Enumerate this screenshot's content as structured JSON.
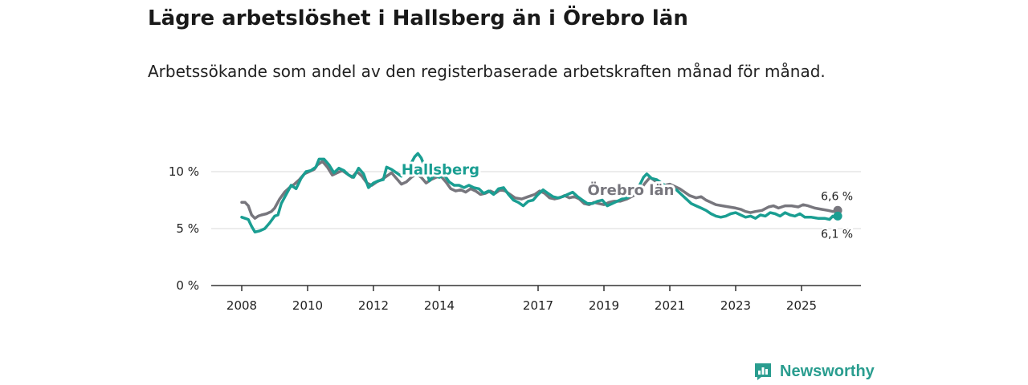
{
  "title": "Lägre arbetslöshet i Hallsberg än i Örebro län",
  "subtitle": "Arbetssökande som andel av den registerbaserade arbetskraften månad för månad.",
  "brand": {
    "name": "Newsworthy",
    "icon": "newsworthy-logo-icon"
  },
  "chart_data": {
    "type": "line",
    "title": "Lägre arbetslöshet i Hallsberg än i Örebro län",
    "ylabel": "",
    "xlabel": "",
    "ylim": [
      0,
      10
    ],
    "xlim": [
      2008,
      2026.4
    ],
    "y_ticks": [
      0,
      5,
      10
    ],
    "y_tick_labels": [
      "0 %",
      "5 %",
      "10 %"
    ],
    "x_ticks": [
      2008,
      2010,
      2012,
      2014,
      2017,
      2019,
      2021,
      2023,
      2025
    ],
    "x_tick_labels": [
      "2008",
      "2010",
      "2012",
      "2014",
      "2017",
      "2019",
      "2021",
      "2023",
      "2025"
    ],
    "grid": true,
    "series": [
      {
        "name": "Örebro län",
        "color": "#77767d",
        "end_label": "6,6 %",
        "points": [
          [
            2008.0,
            7.3
          ],
          [
            2008.1,
            7.3
          ],
          [
            2008.2,
            7.0
          ],
          [
            2008.3,
            6.2
          ],
          [
            2008.4,
            5.9
          ],
          [
            2008.5,
            6.1
          ],
          [
            2008.6,
            6.2
          ],
          [
            2008.75,
            6.3
          ],
          [
            2008.9,
            6.5
          ],
          [
            2009.0,
            6.8
          ],
          [
            2009.15,
            7.6
          ],
          [
            2009.3,
            8.2
          ],
          [
            2009.45,
            8.6
          ],
          [
            2009.6,
            8.9
          ],
          [
            2009.75,
            9.3
          ],
          [
            2009.9,
            9.8
          ],
          [
            2010.05,
            10.0
          ],
          [
            2010.2,
            10.2
          ],
          [
            2010.3,
            10.6
          ],
          [
            2010.45,
            10.9
          ],
          [
            2010.6,
            10.4
          ],
          [
            2010.75,
            9.7
          ],
          [
            2010.9,
            9.9
          ],
          [
            2011.05,
            10.1
          ],
          [
            2011.2,
            9.8
          ],
          [
            2011.35,
            9.5
          ],
          [
            2011.5,
            10.0
          ],
          [
            2011.65,
            9.6
          ],
          [
            2011.8,
            9.0
          ],
          [
            2011.95,
            8.8
          ],
          [
            2012.1,
            9.1
          ],
          [
            2012.25,
            9.3
          ],
          [
            2012.4,
            9.6
          ],
          [
            2012.55,
            9.9
          ],
          [
            2012.7,
            9.4
          ],
          [
            2012.85,
            8.9
          ],
          [
            2013.0,
            9.1
          ],
          [
            2013.15,
            9.5
          ],
          [
            2013.3,
            9.8
          ],
          [
            2013.45,
            9.5
          ],
          [
            2013.6,
            9.0
          ],
          [
            2013.75,
            9.3
          ],
          [
            2013.9,
            9.5
          ],
          [
            2014.05,
            9.6
          ],
          [
            2014.2,
            9.1
          ],
          [
            2014.35,
            8.5
          ],
          [
            2014.5,
            8.3
          ],
          [
            2014.65,
            8.4
          ],
          [
            2014.8,
            8.2
          ],
          [
            2014.95,
            8.5
          ],
          [
            2015.1,
            8.3
          ],
          [
            2015.25,
            8.0
          ],
          [
            2015.4,
            8.1
          ],
          [
            2015.55,
            8.3
          ],
          [
            2015.7,
            8.1
          ],
          [
            2015.85,
            8.4
          ],
          [
            2016.0,
            8.3
          ],
          [
            2016.15,
            8.0
          ],
          [
            2016.3,
            7.7
          ],
          [
            2016.5,
            7.6
          ],
          [
            2016.7,
            7.8
          ],
          [
            2016.9,
            8.0
          ],
          [
            2017.05,
            8.3
          ],
          [
            2017.2,
            8.1
          ],
          [
            2017.35,
            7.7
          ],
          [
            2017.5,
            7.6
          ],
          [
            2017.65,
            7.7
          ],
          [
            2017.8,
            7.9
          ],
          [
            2017.95,
            7.7
          ],
          [
            2018.1,
            7.8
          ],
          [
            2018.25,
            7.6
          ],
          [
            2018.4,
            7.2
          ],
          [
            2018.55,
            7.1
          ],
          [
            2018.7,
            7.3
          ],
          [
            2018.85,
            7.2
          ],
          [
            2019.0,
            7.1
          ],
          [
            2019.15,
            7.3
          ],
          [
            2019.3,
            7.4
          ],
          [
            2019.5,
            7.4
          ],
          [
            2019.7,
            7.6
          ],
          [
            2019.9,
            7.9
          ],
          [
            2020.1,
            8.4
          ],
          [
            2020.25,
            9.0
          ],
          [
            2020.4,
            9.5
          ],
          [
            2020.55,
            9.2
          ],
          [
            2020.7,
            8.9
          ],
          [
            2020.85,
            8.8
          ],
          [
            2021.0,
            8.9
          ],
          [
            2021.15,
            8.7
          ],
          [
            2021.3,
            8.5
          ],
          [
            2021.45,
            8.2
          ],
          [
            2021.6,
            7.9
          ],
          [
            2021.8,
            7.7
          ],
          [
            2021.95,
            7.8
          ],
          [
            2022.1,
            7.5
          ],
          [
            2022.25,
            7.3
          ],
          [
            2022.4,
            7.1
          ],
          [
            2022.6,
            7.0
          ],
          [
            2022.8,
            6.9
          ],
          [
            2023.0,
            6.8
          ],
          [
            2023.15,
            6.7
          ],
          [
            2023.3,
            6.5
          ],
          [
            2023.45,
            6.4
          ],
          [
            2023.6,
            6.5
          ],
          [
            2023.8,
            6.6
          ],
          [
            2024.0,
            6.9
          ],
          [
            2024.15,
            7.0
          ],
          [
            2024.3,
            6.8
          ],
          [
            2024.5,
            7.0
          ],
          [
            2024.7,
            7.0
          ],
          [
            2024.9,
            6.9
          ],
          [
            2025.05,
            7.1
          ],
          [
            2025.2,
            7.0
          ],
          [
            2025.4,
            6.8
          ],
          [
            2025.6,
            6.7
          ],
          [
            2025.8,
            6.6
          ],
          [
            2025.95,
            6.5
          ],
          [
            2026.1,
            6.6
          ]
        ]
      },
      {
        "name": "Hallsberg",
        "color": "#1a9e92",
        "end_label": "6,1 %",
        "points": [
          [
            2008.0,
            6.0
          ],
          [
            2008.1,
            5.9
          ],
          [
            2008.2,
            5.8
          ],
          [
            2008.3,
            5.2
          ],
          [
            2008.4,
            4.7
          ],
          [
            2008.55,
            4.8
          ],
          [
            2008.7,
            5.0
          ],
          [
            2008.85,
            5.5
          ],
          [
            2009.0,
            6.1
          ],
          [
            2009.1,
            6.2
          ],
          [
            2009.2,
            7.2
          ],
          [
            2009.35,
            8.0
          ],
          [
            2009.5,
            8.8
          ],
          [
            2009.65,
            8.5
          ],
          [
            2009.8,
            9.4
          ],
          [
            2009.95,
            10.0
          ],
          [
            2010.1,
            10.1
          ],
          [
            2010.25,
            10.4
          ],
          [
            2010.35,
            11.1
          ],
          [
            2010.5,
            11.1
          ],
          [
            2010.65,
            10.6
          ],
          [
            2010.8,
            9.9
          ],
          [
            2010.95,
            10.3
          ],
          [
            2011.1,
            10.1
          ],
          [
            2011.25,
            9.7
          ],
          [
            2011.4,
            9.5
          ],
          [
            2011.55,
            10.3
          ],
          [
            2011.7,
            9.8
          ],
          [
            2011.85,
            8.6
          ],
          [
            2012.0,
            9.0
          ],
          [
            2012.15,
            9.2
          ],
          [
            2012.3,
            9.3
          ],
          [
            2012.4,
            10.4
          ],
          [
            2012.55,
            10.2
          ],
          [
            2012.7,
            9.9
          ],
          [
            2012.85,
            9.6
          ],
          [
            2013.0,
            10.0
          ],
          [
            2013.1,
            10.5
          ],
          [
            2013.25,
            11.3
          ],
          [
            2013.35,
            11.6
          ],
          [
            2013.45,
            11.2
          ],
          [
            2013.6,
            10.1
          ],
          [
            2013.7,
            9.2
          ],
          [
            2013.85,
            9.7
          ],
          [
            2014.0,
            9.5
          ],
          [
            2014.15,
            9.7
          ],
          [
            2014.3,
            9.1
          ],
          [
            2014.45,
            8.8
          ],
          [
            2014.6,
            8.8
          ],
          [
            2014.75,
            8.6
          ],
          [
            2014.9,
            8.8
          ],
          [
            2015.05,
            8.6
          ],
          [
            2015.2,
            8.5
          ],
          [
            2015.35,
            8.1
          ],
          [
            2015.5,
            8.3
          ],
          [
            2015.65,
            8.0
          ],
          [
            2015.8,
            8.5
          ],
          [
            2015.95,
            8.6
          ],
          [
            2016.1,
            8.0
          ],
          [
            2016.25,
            7.5
          ],
          [
            2016.4,
            7.3
          ],
          [
            2016.55,
            7.0
          ],
          [
            2016.7,
            7.4
          ],
          [
            2016.85,
            7.5
          ],
          [
            2017.0,
            8.0
          ],
          [
            2017.15,
            8.4
          ],
          [
            2017.3,
            8.1
          ],
          [
            2017.45,
            7.8
          ],
          [
            2017.6,
            7.7
          ],
          [
            2017.75,
            7.8
          ],
          [
            2017.9,
            8.0
          ],
          [
            2018.05,
            8.2
          ],
          [
            2018.2,
            7.8
          ],
          [
            2018.35,
            7.5
          ],
          [
            2018.5,
            7.2
          ],
          [
            2018.65,
            7.2
          ],
          [
            2018.8,
            7.4
          ],
          [
            2018.95,
            7.5
          ],
          [
            2019.1,
            7.0
          ],
          [
            2019.25,
            7.2
          ],
          [
            2019.4,
            7.4
          ],
          [
            2019.55,
            7.6
          ],
          [
            2019.7,
            7.7
          ],
          [
            2019.85,
            8.0
          ],
          [
            2020.0,
            8.5
          ],
          [
            2020.1,
            8.9
          ],
          [
            2020.2,
            9.5
          ],
          [
            2020.3,
            9.8
          ],
          [
            2020.45,
            9.4
          ],
          [
            2020.6,
            9.3
          ],
          [
            2020.75,
            9.0
          ],
          [
            2020.9,
            8.7
          ],
          [
            2021.05,
            8.5
          ],
          [
            2021.2,
            8.4
          ],
          [
            2021.35,
            8.0
          ],
          [
            2021.5,
            7.6
          ],
          [
            2021.65,
            7.2
          ],
          [
            2021.8,
            7.0
          ],
          [
            2021.95,
            6.8
          ],
          [
            2022.1,
            6.6
          ],
          [
            2022.25,
            6.3
          ],
          [
            2022.4,
            6.1
          ],
          [
            2022.55,
            6.0
          ],
          [
            2022.7,
            6.1
          ],
          [
            2022.85,
            6.3
          ],
          [
            2023.0,
            6.4
          ],
          [
            2023.15,
            6.2
          ],
          [
            2023.3,
            6.0
          ],
          [
            2023.45,
            6.1
          ],
          [
            2023.6,
            5.9
          ],
          [
            2023.75,
            6.2
          ],
          [
            2023.9,
            6.1
          ],
          [
            2024.05,
            6.4
          ],
          [
            2024.2,
            6.3
          ],
          [
            2024.35,
            6.1
          ],
          [
            2024.5,
            6.4
          ],
          [
            2024.65,
            6.2
          ],
          [
            2024.8,
            6.1
          ],
          [
            2024.95,
            6.3
          ],
          [
            2025.1,
            6.0
          ],
          [
            2025.3,
            6.0
          ],
          [
            2025.5,
            5.9
          ],
          [
            2025.7,
            5.9
          ],
          [
            2025.85,
            5.8
          ],
          [
            2025.95,
            6.1
          ],
          [
            2026.05,
            5.9
          ],
          [
            2026.1,
            6.1
          ]
        ]
      }
    ]
  }
}
